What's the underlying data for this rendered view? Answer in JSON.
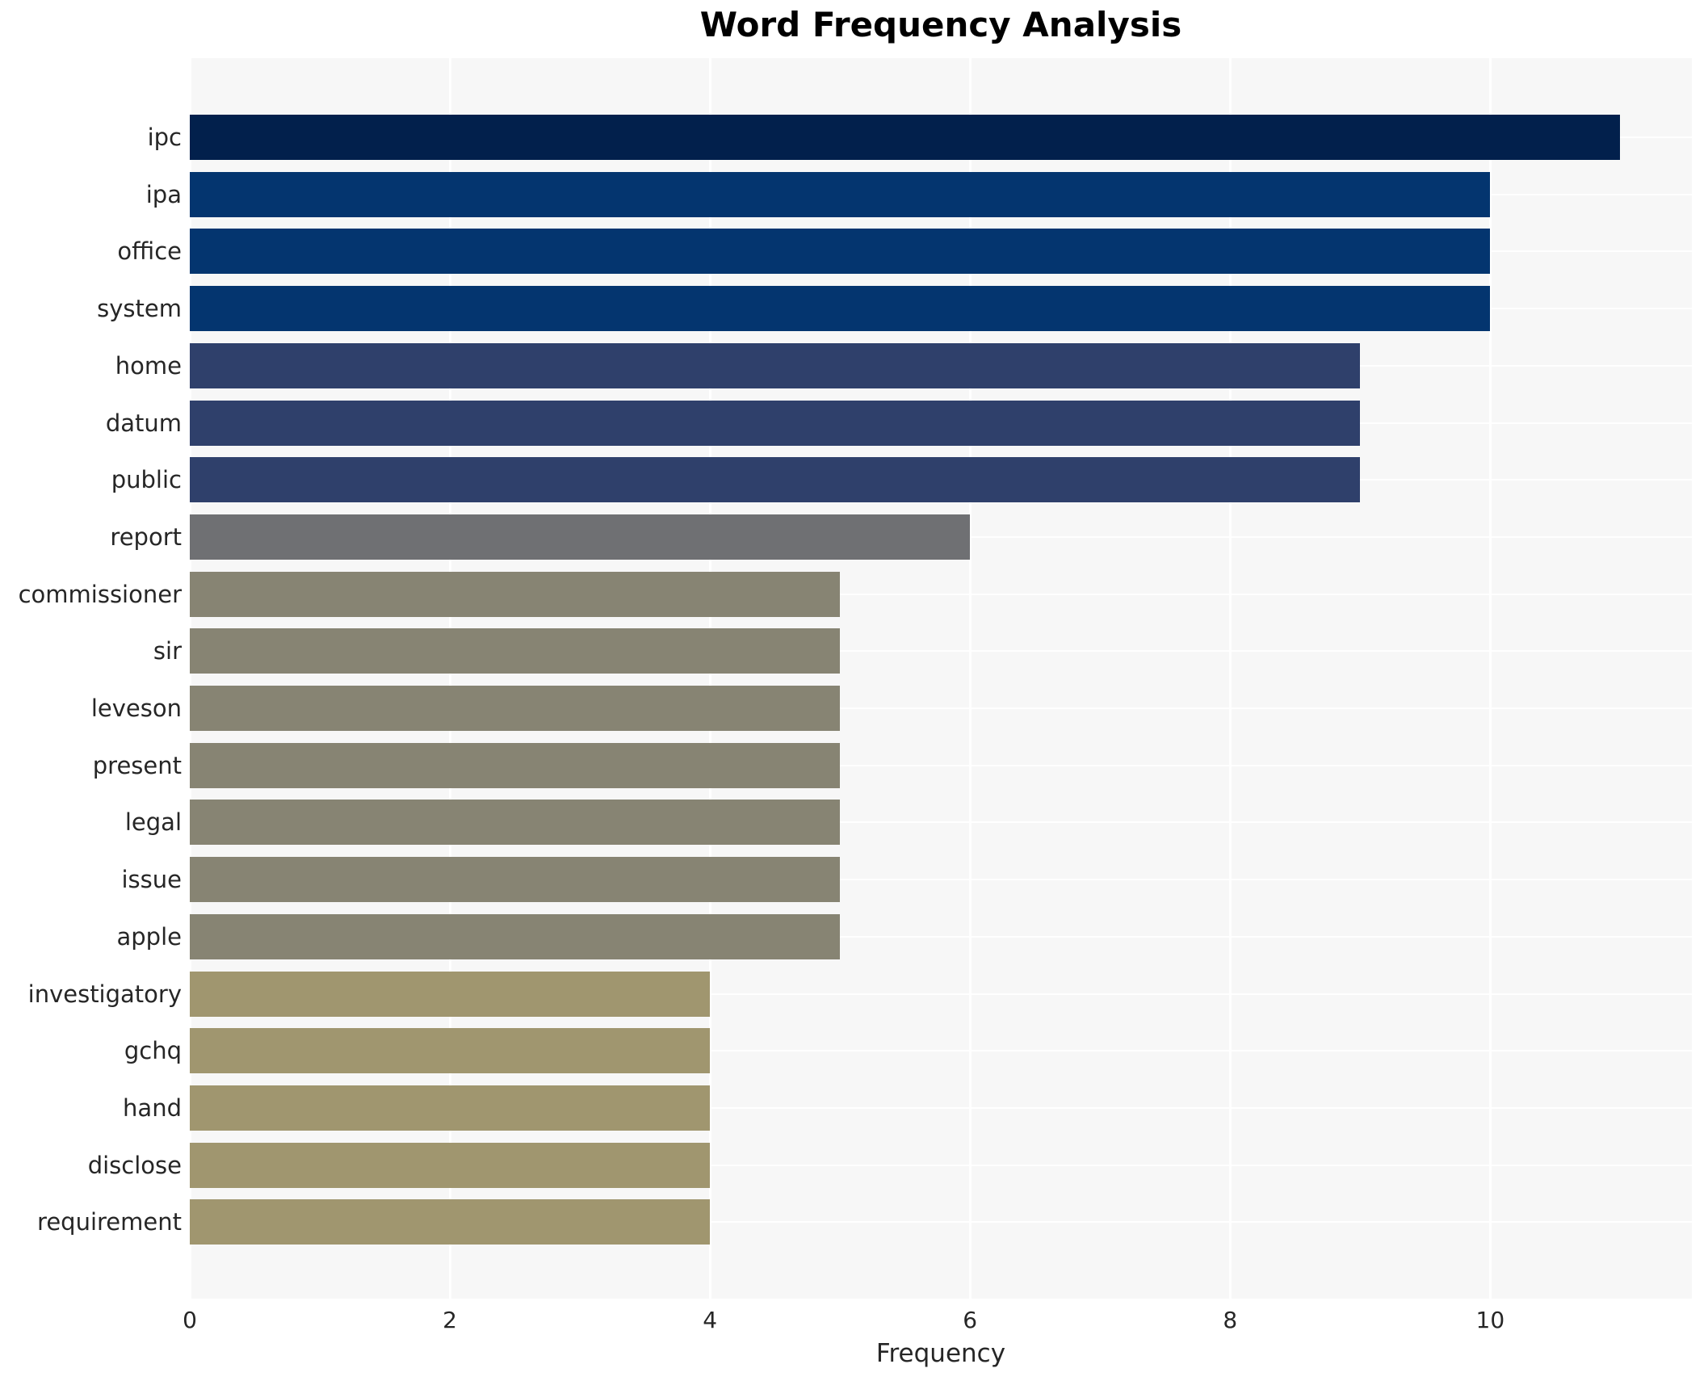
{
  "chart_data": {
    "type": "bar",
    "orientation": "horizontal",
    "title": "Word Frequency Analysis",
    "xlabel": "Frequency",
    "ylabel": "",
    "categories": [
      "ipc",
      "ipa",
      "office",
      "system",
      "home",
      "datum",
      "public",
      "report",
      "commissioner",
      "sir",
      "leveson",
      "present",
      "legal",
      "issue",
      "apple",
      "investigatory",
      "gchq",
      "hand",
      "disclose",
      "requirement"
    ],
    "values": [
      11,
      10,
      10,
      10,
      9,
      9,
      9,
      6,
      5,
      5,
      5,
      5,
      5,
      5,
      5,
      4,
      4,
      4,
      4,
      4
    ],
    "bar_colors": [
      "#02204c",
      "#04356f",
      "#04356f",
      "#04356f",
      "#2f406b",
      "#2f406b",
      "#2f406b",
      "#6f7073",
      "#878473",
      "#878473",
      "#878473",
      "#878473",
      "#878473",
      "#878473",
      "#878473",
      "#a0966f",
      "#a0966f",
      "#a0966f",
      "#a0966f",
      "#a0966f"
    ],
    "xlim": [
      0,
      11.55
    ],
    "xticks": [
      0,
      2,
      4,
      6,
      8,
      10
    ],
    "grid": true,
    "legend": "none",
    "plot_bg": "#f7f7f7",
    "grid_color": "#ffffff",
    "figure_bg": "#ffffff",
    "text_color": "#262626"
  }
}
